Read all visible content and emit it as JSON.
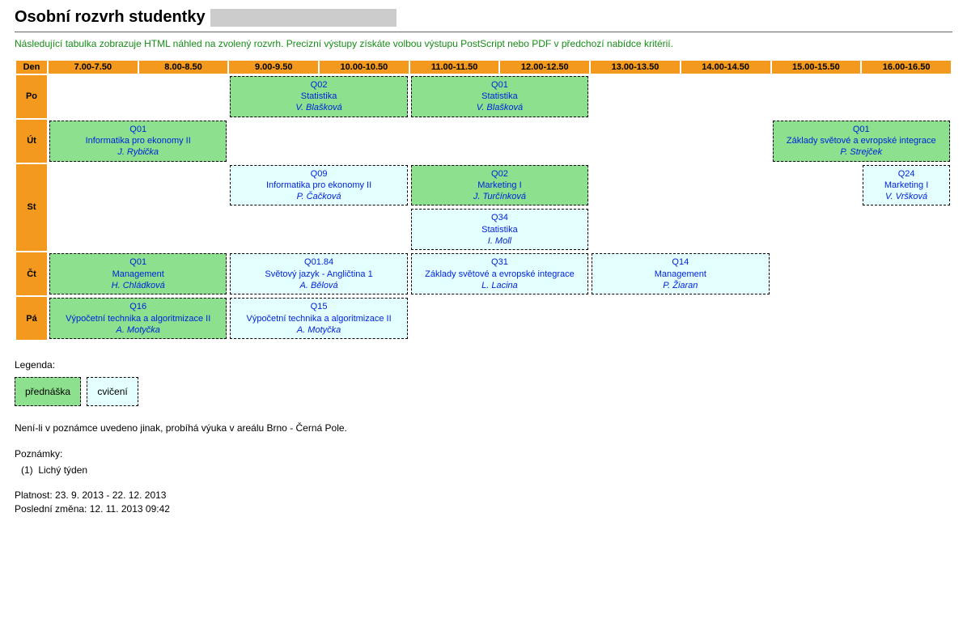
{
  "title_prefix": "Osobní rozvrh studentky",
  "intro_text": "Následující tabulka zobrazuje HTML náhled na zvolený rozvrh. Precizní výstupy získáte volbou výstupu PostScript nebo PDF v předchozí nabídce kritérií.",
  "colors": {
    "header_bg": "#f39a1e",
    "lecture_bg": "#8de08d",
    "exercise_bg": "#e4ffff",
    "link": "#0022dd",
    "intro": "#168d16"
  },
  "header": {
    "day_label": "Den",
    "slots": [
      "7.00-7.50",
      "8.00-8.50",
      "9.00-9.50",
      "10.00-10.50",
      "11.00-11.50",
      "12.00-12.50",
      "13.00-13.50",
      "14.00-14.50",
      "15.00-15.50",
      "16.00-16.50"
    ]
  },
  "days": {
    "po": {
      "label": "Po",
      "rows": [
        [
          {
            "start": 2,
            "span": 2,
            "type": "lecture",
            "room": "Q02",
            "subj": "Statistika",
            "teacher": "V. Blašková"
          },
          {
            "start": 4,
            "span": 2,
            "type": "lecture",
            "room": "Q01",
            "subj": "Statistika",
            "teacher": "V. Blašková"
          }
        ]
      ]
    },
    "ut": {
      "label": "Út",
      "rows": [
        [
          {
            "start": 0,
            "span": 2,
            "type": "lecture",
            "room": "Q01",
            "subj": "Informatika pro ekonomy II",
            "teacher": "J. Rybička"
          },
          {
            "start": 8,
            "span": 2,
            "type": "lecture",
            "room": "Q01",
            "subj": "Základy světové a evropské integrace",
            "teacher": "P. Strejček"
          }
        ]
      ]
    },
    "st": {
      "label": "St",
      "rows": [
        [
          {
            "start": 2,
            "span": 2,
            "type": "exercise",
            "room": "Q09",
            "subj": "Informatika pro ekonomy II",
            "teacher": "P. Čačková"
          },
          {
            "start": 4,
            "span": 2,
            "type": "lecture",
            "room": "Q02",
            "subj": "Marketing I",
            "teacher": "J. Turčínková"
          },
          {
            "start": 9,
            "span": 1,
            "type": "exercise",
            "room": "Q24",
            "subj": "Marketing I",
            "teacher": "V. Vršková"
          }
        ],
        [
          {
            "start": 4,
            "span": 2,
            "type": "exercise",
            "room": "Q34",
            "subj": "Statistika",
            "teacher": "I. Moll"
          }
        ]
      ]
    },
    "ct": {
      "label": "Čt",
      "rows": [
        [
          {
            "start": 0,
            "span": 2,
            "type": "lecture",
            "room": "Q01",
            "subj": "Management",
            "teacher": "H. Chládková"
          },
          {
            "start": 2,
            "span": 2,
            "type": "exercise",
            "room": "Q01.84",
            "subj": "Světový jazyk - Angličtina 1",
            "teacher": "A. Bělová"
          },
          {
            "start": 4,
            "span": 2,
            "type": "exercise",
            "room": "Q31",
            "subj": "Základy světové a evropské integrace",
            "teacher": "L. Lacina"
          },
          {
            "start": 6,
            "span": 2,
            "type": "exercise",
            "room": "Q14",
            "subj": "Management",
            "teacher": "P. Žiaran"
          }
        ]
      ]
    },
    "pa": {
      "label": "Pá",
      "rows": [
        [
          {
            "start": 0,
            "span": 2,
            "type": "lecture",
            "room": "Q16",
            "subj": "Výpočetní technika a algoritmizace II",
            "teacher": "A. Motyčka"
          },
          {
            "start": 2,
            "span": 2,
            "type": "exercise",
            "room": "Q15",
            "subj": "Výpočetní technika a algoritmizace II",
            "teacher": "A. Motyčka"
          }
        ]
      ]
    }
  },
  "legend": {
    "label": "Legenda:",
    "lecture": "přednáška",
    "exercise": "cvičení"
  },
  "notes": {
    "location": "Není-li v poznámce uvedeno jinak, probíhá výuka v areálu Brno - Černá Pole.",
    "label": "Poznámky:",
    "items": [
      "Lichý týden"
    ]
  },
  "meta": {
    "validity": "Platnost: 23. 9. 2013 - 22. 12. 2013",
    "updated": "Poslední změna: 12. 11. 2013 09:42"
  }
}
